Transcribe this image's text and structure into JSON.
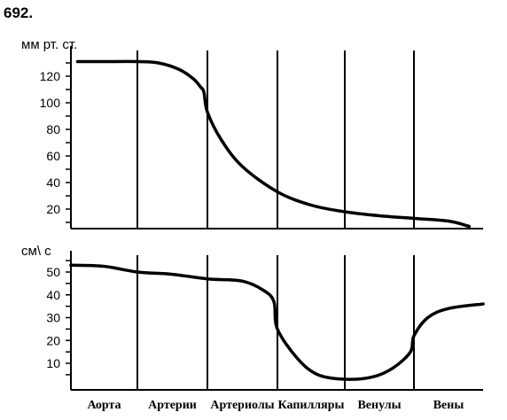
{
  "problem_number": "692.",
  "chart_data": [
    {
      "type": "line",
      "ylabel": "мм рт. ст.",
      "ylim": [
        0,
        135
      ],
      "yticks": [
        20,
        40,
        60,
        80,
        100,
        120
      ],
      "categories": [
        "Аорта",
        "Артерии",
        "Артериолы",
        "Капилляры",
        "Венулы",
        "Вены"
      ],
      "series": [
        {
          "x": [
            0.1,
            0.5,
            1.0,
            1.3,
            1.6,
            1.8,
            1.9,
            1.95,
            2.0,
            2.2,
            2.5,
            3.0,
            3.5,
            4.0,
            4.5,
            5.0,
            5.5,
            5.8
          ],
          "values": [
            131,
            131,
            131,
            130,
            125,
            118,
            112,
            108,
            93,
            72,
            52,
            33,
            23,
            18,
            15,
            13,
            11,
            7
          ]
        }
      ]
    },
    {
      "type": "line",
      "ylabel": "см\\ с",
      "ylim": [
        0,
        55
      ],
      "yticks": [
        10,
        20,
        30,
        40,
        50
      ],
      "categories": [
        "Аорта",
        "Артерии",
        "Артериолы",
        "Капилляры",
        "Венулы",
        "Вены"
      ],
      "series": [
        {
          "x": [
            0.0,
            0.5,
            1.0,
            1.5,
            2.0,
            2.5,
            2.8,
            2.95,
            3.0,
            3.3,
            3.6,
            4.0,
            4.4,
            4.7,
            4.95,
            5.0,
            5.2,
            5.5,
            6.0
          ],
          "values": [
            53,
            52.5,
            50,
            49,
            47,
            46,
            42,
            37,
            25,
            12,
            5,
            3,
            4,
            8,
            15,
            22,
            30,
            34,
            36
          ]
        }
      ]
    }
  ]
}
